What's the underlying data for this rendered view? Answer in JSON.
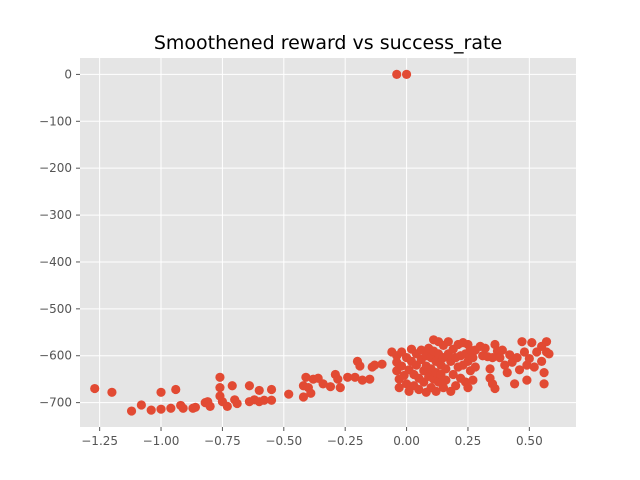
{
  "chart_data": {
    "type": "scatter",
    "title": "Smoothened reward vs success_rate",
    "xlabel": "",
    "ylabel": "",
    "xlim": [
      -1.33,
      0.69
    ],
    "ylim": [
      -752,
      35
    ],
    "xticks": [
      -1.25,
      -1.0,
      -0.75,
      -0.5,
      -0.25,
      0.0,
      0.25,
      0.5
    ],
    "xtick_labels": [
      "−1.25",
      "−1.00",
      "−0.75",
      "−0.50",
      "−0.25",
      "0.00",
      "0.25",
      "0.50"
    ],
    "yticks": [
      0,
      -100,
      -200,
      -300,
      -400,
      -500,
      -600,
      -700
    ],
    "ytick_labels": [
      "0",
      "−100",
      "−200",
      "−300",
      "−400",
      "−500",
      "−600",
      "−700"
    ],
    "grid": true,
    "marker_color": "#E24A33",
    "background_color": "#E5E5E5",
    "grid_color": "#FFFFFF",
    "series": [
      {
        "points": [
          [
            -0.04,
            0
          ],
          [
            0.0,
            0
          ],
          [
            -1.27,
            -670
          ],
          [
            -1.2,
            -678
          ],
          [
            -1.12,
            -718
          ],
          [
            -1.08,
            -705
          ],
          [
            -1.04,
            -716
          ],
          [
            -1.0,
            -678
          ],
          [
            -1.0,
            -714
          ],
          [
            -0.96,
            -712
          ],
          [
            -0.94,
            -672
          ],
          [
            -0.92,
            -706
          ],
          [
            -0.91,
            -712
          ],
          [
            -0.87,
            -712
          ],
          [
            -0.86,
            -710
          ],
          [
            -0.82,
            -700
          ],
          [
            -0.81,
            -698
          ],
          [
            -0.8,
            -708
          ],
          [
            -0.76,
            -646
          ],
          [
            -0.76,
            -668
          ],
          [
            -0.76,
            -686
          ],
          [
            -0.75,
            -698
          ],
          [
            -0.73,
            -708
          ],
          [
            -0.71,
            -664
          ],
          [
            -0.7,
            -694
          ],
          [
            -0.69,
            -702
          ],
          [
            -0.64,
            -664
          ],
          [
            -0.64,
            -698
          ],
          [
            -0.62,
            -694
          ],
          [
            -0.6,
            -674
          ],
          [
            -0.6,
            -698
          ],
          [
            -0.58,
            -695
          ],
          [
            -0.55,
            -672
          ],
          [
            -0.55,
            -695
          ],
          [
            -0.48,
            -682
          ],
          [
            -0.42,
            -664
          ],
          [
            -0.42,
            -688
          ],
          [
            -0.41,
            -646
          ],
          [
            -0.4,
            -668
          ],
          [
            -0.39,
            -680
          ],
          [
            -0.38,
            -650
          ],
          [
            -0.36,
            -648
          ],
          [
            -0.34,
            -660
          ],
          [
            -0.31,
            -666
          ],
          [
            -0.29,
            -640
          ],
          [
            -0.28,
            -650
          ],
          [
            -0.27,
            -668
          ],
          [
            -0.24,
            -646
          ],
          [
            -0.21,
            -646
          ],
          [
            -0.2,
            -612
          ],
          [
            -0.19,
            -622
          ],
          [
            -0.18,
            -652
          ],
          [
            -0.15,
            -650
          ],
          [
            -0.14,
            -624
          ],
          [
            -0.13,
            -620
          ],
          [
            -0.1,
            -618
          ],
          [
            -0.06,
            -592
          ],
          [
            -0.04,
            -600
          ],
          [
            -0.04,
            -614
          ],
          [
            -0.04,
            -632
          ],
          [
            -0.03,
            -650
          ],
          [
            -0.03,
            -668
          ],
          [
            -0.02,
            -592
          ],
          [
            -0.02,
            -622
          ],
          [
            -0.01,
            -642
          ],
          [
            0.0,
            -604
          ],
          [
            0.0,
            -660
          ],
          [
            0.01,
            -630
          ],
          [
            0.01,
            -676
          ],
          [
            0.02,
            -586
          ],
          [
            0.02,
            -612
          ],
          [
            0.03,
            -640
          ],
          [
            0.03,
            -664
          ],
          [
            0.04,
            -596
          ],
          [
            0.04,
            -620
          ],
          [
            0.05,
            -648
          ],
          [
            0.05,
            -672
          ],
          [
            0.06,
            -588
          ],
          [
            0.06,
            -608
          ],
          [
            0.07,
            -632
          ],
          [
            0.07,
            -656
          ],
          [
            0.08,
            -600
          ],
          [
            0.08,
            -622
          ],
          [
            0.08,
            -678
          ],
          [
            0.09,
            -584
          ],
          [
            0.09,
            -644
          ],
          [
            0.1,
            -604
          ],
          [
            0.1,
            -628
          ],
          [
            0.1,
            -668
          ],
          [
            0.11,
            -566
          ],
          [
            0.11,
            -590
          ],
          [
            0.11,
            -650
          ],
          [
            0.12,
            -612
          ],
          [
            0.12,
            -636
          ],
          [
            0.12,
            -676
          ],
          [
            0.13,
            -570
          ],
          [
            0.13,
            -596
          ],
          [
            0.13,
            -656
          ],
          [
            0.14,
            -620
          ],
          [
            0.14,
            -640
          ],
          [
            0.15,
            -578
          ],
          [
            0.15,
            -604
          ],
          [
            0.15,
            -668
          ],
          [
            0.16,
            -628
          ],
          [
            0.16,
            -652
          ],
          [
            0.17,
            -570
          ],
          [
            0.17,
            -596
          ],
          [
            0.18,
            -612
          ],
          [
            0.18,
            -676
          ],
          [
            0.19,
            -586
          ],
          [
            0.19,
            -640
          ],
          [
            0.2,
            -604
          ],
          [
            0.2,
            -664
          ],
          [
            0.21,
            -576
          ],
          [
            0.21,
            -624
          ],
          [
            0.22,
            -600
          ],
          [
            0.22,
            -648
          ],
          [
            0.23,
            -572
          ],
          [
            0.23,
            -620
          ],
          [
            0.24,
            -596
          ],
          [
            0.24,
            -656
          ],
          [
            0.25,
            -576
          ],
          [
            0.25,
            -612
          ],
          [
            0.25,
            -668
          ],
          [
            0.26,
            -588
          ],
          [
            0.26,
            -632
          ],
          [
            0.27,
            -604
          ],
          [
            0.27,
            -652
          ],
          [
            0.28,
            -588
          ],
          [
            0.28,
            -624
          ],
          [
            0.3,
            -580
          ],
          [
            0.31,
            -600
          ],
          [
            0.32,
            -584
          ],
          [
            0.33,
            -602
          ],
          [
            0.34,
            -628
          ],
          [
            0.34,
            -648
          ],
          [
            0.35,
            -604
          ],
          [
            0.35,
            -660
          ],
          [
            0.36,
            -576
          ],
          [
            0.36,
            -670
          ],
          [
            0.37,
            -590
          ],
          [
            0.38,
            -604
          ],
          [
            0.39,
            -588
          ],
          [
            0.4,
            -620
          ],
          [
            0.41,
            -636
          ],
          [
            0.42,
            -598
          ],
          [
            0.43,
            -614
          ],
          [
            0.44,
            -660
          ],
          [
            0.45,
            -604
          ],
          [
            0.46,
            -630
          ],
          [
            0.47,
            -570
          ],
          [
            0.48,
            -592
          ],
          [
            0.49,
            -620
          ],
          [
            0.49,
            -652
          ],
          [
            0.5,
            -606
          ],
          [
            0.51,
            -572
          ],
          [
            0.52,
            -624
          ],
          [
            0.53,
            -592
          ],
          [
            0.55,
            -580
          ],
          [
            0.55,
            -612
          ],
          [
            0.56,
            -636
          ],
          [
            0.56,
            -660
          ],
          [
            0.57,
            -570
          ],
          [
            0.57,
            -592
          ],
          [
            0.58,
            -596
          ]
        ]
      }
    ]
  }
}
